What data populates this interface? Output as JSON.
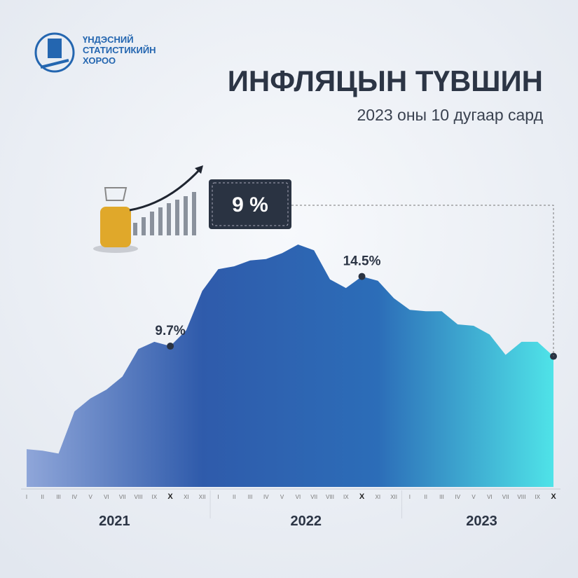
{
  "header": {
    "org": [
      "ҮНДЭСНИЙ",
      "СТАТИСТИКИЙН",
      "ХОРОО"
    ]
  },
  "chart_data": {
    "type": "area",
    "title": "ИНФЛЯЦЫН ТҮВШИН",
    "subtitle": "2023 оны 10 дугаар сард",
    "categories": [
      "I",
      "II",
      "III",
      "IV",
      "V",
      "VI",
      "VII",
      "VIII",
      "IX",
      "X",
      "XI",
      "XII",
      "I",
      "II",
      "III",
      "IV",
      "V",
      "VI",
      "VII",
      "VIII",
      "IX",
      "X",
      "XI",
      "XII",
      "I",
      "II",
      "III",
      "IV",
      "V",
      "VI",
      "VII",
      "VIII",
      "IX",
      "X"
    ],
    "years": [
      "2021",
      "2022",
      "2023"
    ],
    "values": [
      2.6,
      2.5,
      2.3,
      5.2,
      6.1,
      6.7,
      7.6,
      9.5,
      10.0,
      9.7,
      10.8,
      13.5,
      15.0,
      15.2,
      15.6,
      15.7,
      16.1,
      16.7,
      16.3,
      14.3,
      13.7,
      14.5,
      14.2,
      13.0,
      12.2,
      12.1,
      12.1,
      11.2,
      11.1,
      10.5,
      9.1,
      10.0,
      10.0,
      9.0
    ],
    "value_labels": [
      null,
      null,
      null,
      null,
      null,
      null,
      null,
      null,
      null,
      "9.7%",
      null,
      null,
      null,
      null,
      null,
      null,
      null,
      null,
      null,
      null,
      null,
      "14.5%",
      null,
      null,
      null,
      null,
      null,
      null,
      null,
      null,
      null,
      null,
      null,
      "9 %"
    ],
    "colors": [
      "#8fa6d9",
      "#2f5bab",
      "#2c6db8",
      "#4fe3e8"
    ]
  }
}
